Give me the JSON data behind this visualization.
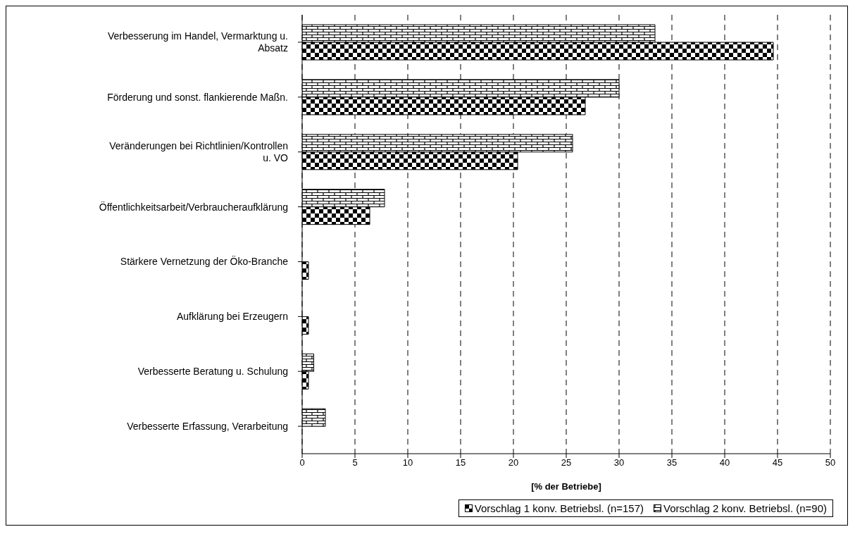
{
  "chart_data": {
    "type": "bar",
    "orientation": "horizontal",
    "xlabel": "[% der Betriebe]",
    "categories": [
      "Verbesserung im Handel, Vermarktung u. Absatz",
      "Förderung und sonst. flankierende Maßn.",
      "Veränderungen bei Richtlinien/Kontrollen u. VO",
      "Öffentlichkeitsarbeit/Verbraucheraufklärung",
      "Stärkere Vernetzung der Öko-Branche",
      "Aufklärung bei Erzeugern",
      "Verbesserte Beratung u. Schulung",
      "Verbesserte Erfassung, Verarbeitung"
    ],
    "series": [
      {
        "name": "Vorschlag 1 konv. Betriebsl. (n=157)",
        "color": "#000000",
        "values": [
          44.6,
          26.8,
          20.4,
          6.4,
          0.6,
          0.6,
          0.6,
          null
        ]
      },
      {
        "name": "Vorschlag 2 konv. Betriebsl. (n=90)",
        "color": "#000000",
        "values": [
          33.4,
          30.0,
          25.6,
          7.8,
          null,
          null,
          1.1,
          2.2
        ]
      }
    ],
    "xlim": [
      0,
      50
    ],
    "xticks": [
      0,
      5,
      10,
      15,
      20,
      25,
      30,
      35,
      40,
      45,
      50
    ],
    "grid": "x",
    "legend": "bottom"
  }
}
